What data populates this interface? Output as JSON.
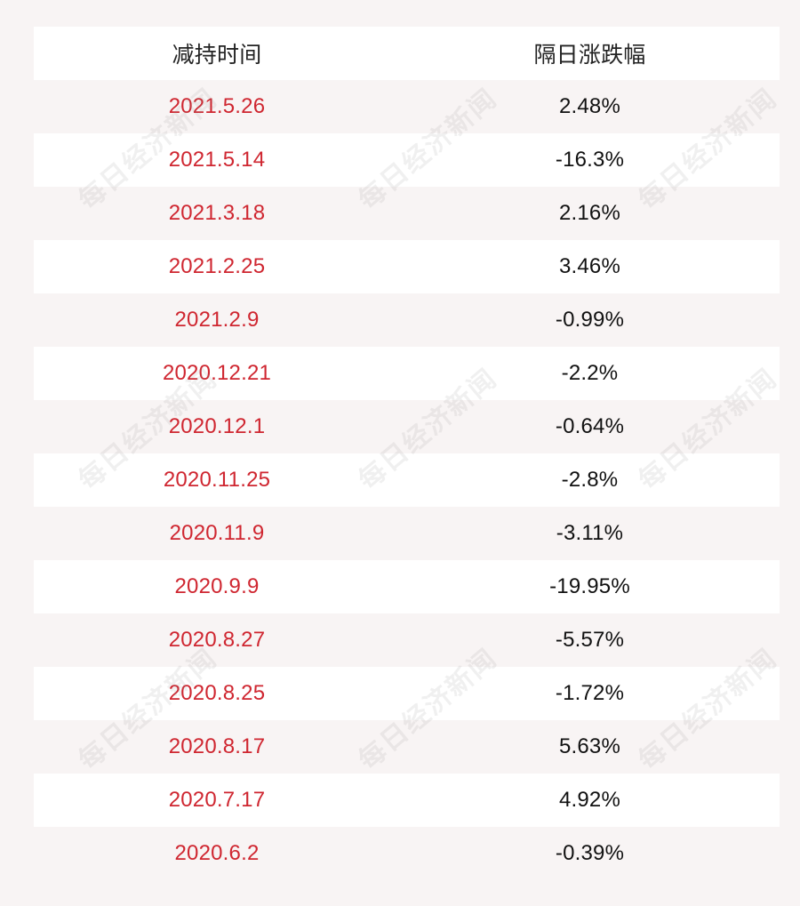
{
  "table": {
    "header": {
      "col1": "减持时间",
      "col2": "隔日涨跌幅"
    },
    "rows": [
      {
        "date": "2021.5.26",
        "change": "2.48%"
      },
      {
        "date": "2021.5.14",
        "change": "-16.3%"
      },
      {
        "date": "2021.3.18",
        "change": "2.16%"
      },
      {
        "date": "2021.2.25",
        "change": "3.46%"
      },
      {
        "date": "2021.2.9",
        "change": "-0.99%"
      },
      {
        "date": "2020.12.21",
        "change": "-2.2%"
      },
      {
        "date": "2020.12.1",
        "change": "-0.64%"
      },
      {
        "date": "2020.11.25",
        "change": "-2.8%"
      },
      {
        "date": "2020.11.9",
        "change": "-3.11%"
      },
      {
        "date": "2020.9.9",
        "change": "-19.95%"
      },
      {
        "date": "2020.8.27",
        "change": "-5.57%"
      },
      {
        "date": "2020.8.25",
        "change": "-1.72%"
      },
      {
        "date": "2020.8.17",
        "change": "5.63%"
      },
      {
        "date": "2020.7.17",
        "change": "4.92%"
      },
      {
        "date": "2020.6.2",
        "change": "-0.39%"
      }
    ]
  },
  "watermark": {
    "text": "每日经济新闻"
  },
  "colors": {
    "date_text": "#cf2630",
    "change_text": "#111111",
    "header_text": "#222222",
    "row_white": "#ffffff",
    "row_tint": "#f8f4f4"
  }
}
